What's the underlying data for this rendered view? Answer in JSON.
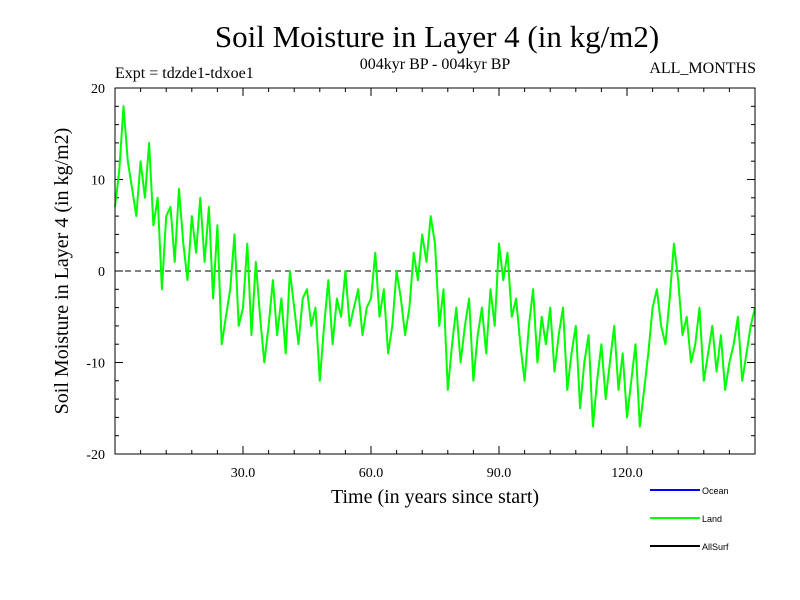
{
  "colors": {
    "ocean": "#0000ff",
    "land": "#00ff00",
    "allsurf": "#000000",
    "axis": "#000000",
    "zero_line": "#000000"
  },
  "chart_data": {
    "type": "line",
    "title": "Soil Moisture in Layer 4 (in kg/m2)",
    "subtitle": "004kyr BP - 004kyr BP",
    "left_note": "Expt = tdzde1-tdxoe1",
    "right_note": "ALL_MONTHS",
    "xlabel": "Time (in years since start)",
    "ylabel": "Soil Moisture in Layer 4 (in kg/m2)",
    "xlim": [
      0,
      150
    ],
    "ylim": [
      -20,
      20
    ],
    "x_ticks": [
      30,
      60,
      90,
      120
    ],
    "x_tick_labels": [
      "30.0",
      "60.0",
      "90.0",
      "120.0"
    ],
    "y_ticks": [
      -20,
      -10,
      0,
      10,
      20
    ],
    "y_tick_labels": [
      "-20",
      "-10",
      "0",
      "10",
      "20"
    ],
    "reference_line": {
      "y": 0,
      "style": "dashed"
    },
    "legend": [
      {
        "name": "Ocean",
        "color_key": "ocean"
      },
      {
        "name": "Land",
        "color_key": "land"
      },
      {
        "name": "AllSurf",
        "color_key": "allsurf"
      }
    ],
    "series": [
      {
        "name": "Land",
        "color_key": "land",
        "x": [
          0,
          1,
          2,
          3,
          4,
          5,
          6,
          7,
          8,
          9,
          10,
          11,
          12,
          13,
          14,
          15,
          16,
          17,
          18,
          19,
          20,
          21,
          22,
          23,
          24,
          25,
          26,
          27,
          28,
          29,
          30,
          31,
          32,
          33,
          34,
          35,
          36,
          37,
          38,
          39,
          40,
          41,
          42,
          43,
          44,
          45,
          46,
          47,
          48,
          49,
          50,
          51,
          52,
          53,
          54,
          55,
          56,
          57,
          58,
          59,
          60,
          61,
          62,
          63,
          64,
          65,
          66,
          67,
          68,
          69,
          70,
          71,
          72,
          73,
          74,
          75,
          76,
          77,
          78,
          79,
          80,
          81,
          82,
          83,
          84,
          85,
          86,
          87,
          88,
          89,
          90,
          91,
          92,
          93,
          94,
          95,
          96,
          97,
          98,
          99,
          100,
          101,
          102,
          103,
          104,
          105,
          106,
          107,
          108,
          109,
          110,
          111,
          112,
          113,
          114,
          115,
          116,
          117,
          118,
          119,
          120,
          121,
          122,
          123,
          124,
          125,
          126,
          127,
          128,
          129,
          130,
          131,
          132,
          133,
          134,
          135,
          136,
          137,
          138,
          139,
          140,
          141,
          142,
          143,
          144,
          145,
          146,
          147,
          148,
          149,
          150
        ],
        "values": [
          7,
          11,
          18,
          12,
          9,
          6,
          12,
          8,
          14,
          5,
          8,
          -2,
          6,
          7,
          1,
          9,
          3,
          -1,
          6,
          2,
          8,
          1,
          7,
          -3,
          5,
          -8,
          -5,
          -2,
          4,
          -6,
          -4,
          3,
          -7,
          1,
          -5,
          -10,
          -6,
          -1,
          -7,
          -3,
          -9,
          0,
          -4,
          -8,
          -3,
          -2,
          -6,
          -4,
          -12,
          -6,
          -1,
          -8,
          -3,
          -5,
          0,
          -6,
          -4,
          -2,
          -7,
          -4,
          -3,
          2,
          -5,
          -2,
          -9,
          -6,
          0,
          -3,
          -7,
          -4,
          2,
          -1,
          4,
          1,
          6,
          3,
          -6,
          -2,
          -13,
          -8,
          -4,
          -10,
          -6,
          -3,
          -12,
          -7,
          -4,
          -9,
          -2,
          -6,
          3,
          -1,
          2,
          -5,
          -3,
          -8,
          -12,
          -6,
          -2,
          -10,
          -5,
          -8,
          -4,
          -11,
          -7,
          -4,
          -13,
          -9,
          -6,
          -15,
          -10,
          -7,
          -17,
          -12,
          -8,
          -14,
          -10,
          -6,
          -13,
          -9,
          -16,
          -12,
          -8,
          -17,
          -13,
          -9,
          -4,
          -2,
          -6,
          -8,
          -3,
          3,
          -1,
          -7,
          -5,
          -10,
          -8,
          -4,
          -12,
          -9,
          -6,
          -11,
          -7,
          -13,
          -10,
          -8,
          -5,
          -12,
          -9,
          -6,
          -4
        ]
      }
    ]
  }
}
